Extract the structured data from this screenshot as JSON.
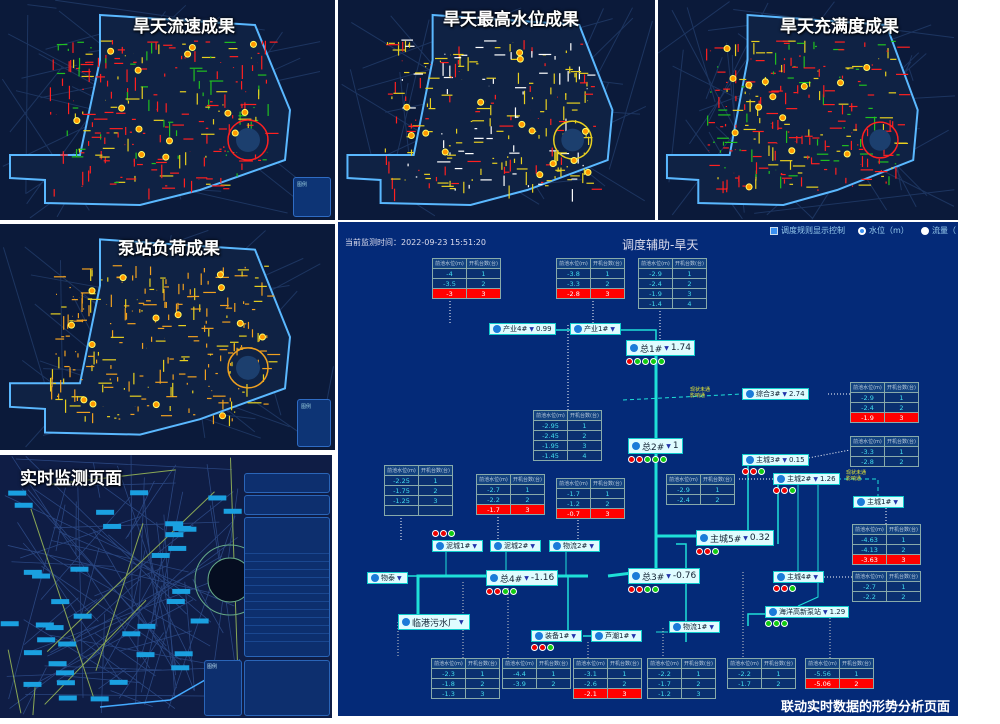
{
  "panels": {
    "flow_speed": {
      "title": "旱天流速成果",
      "legend_title": "图例"
    },
    "max_level": {
      "title": "旱天最高水位成果"
    },
    "fullness": {
      "title": "旱天充满度成果"
    },
    "pump_load": {
      "title": "泵站负荷成果",
      "legend_title": "图例"
    },
    "monitor": {
      "title": "实时监测页面",
      "legend_title": "图例"
    }
  },
  "colors": {
    "pipe_red": "#ff2020",
    "pipe_yellow": "#e8d020",
    "pipe_green": "#20c020",
    "pipe_orange": "#f0a020",
    "boundary": "#5ab8ff",
    "diagram_bg": "#042a78",
    "flow_line": "#1ee0d8",
    "alarm": "#ff0000"
  },
  "diagram": {
    "monitor_time": "当前监测时间：2022-09-23 15:51:20",
    "title": "调度辅助-旱天",
    "controls": {
      "rule_display": "调度规则显示控制",
      "level": "水位（m）",
      "flow": "流量（"
    },
    "caption": "联动实时数据的形势分析页面",
    "table_headers": [
      "前池水位(m)",
      "开机台数(台)"
    ],
    "warning_text": [
      "现状未通",
      "影响通"
    ],
    "tables": [
      {
        "rows": [
          [
            "-4",
            "1"
          ],
          [
            "-3.5",
            "2"
          ],
          [
            "-3",
            "3"
          ]
        ],
        "alarm_row": 2
      },
      {
        "rows": [
          [
            "-3.8",
            "1"
          ],
          [
            "-3.3",
            "2"
          ],
          [
            "-2.8",
            "3"
          ]
        ],
        "alarm_row": 2
      },
      {
        "rows": [
          [
            "-2.9",
            "1"
          ],
          [
            "-2.4",
            "2"
          ],
          [
            "-1.9",
            "3"
          ],
          [
            "-1.4",
            "4"
          ]
        ]
      },
      {
        "rows": [
          [
            "-2.9",
            "1"
          ],
          [
            "-2.4",
            "2"
          ],
          [
            "-1.9",
            "3"
          ]
        ],
        "alarm_row": 2
      },
      {
        "rows": [
          [
            "-2.95",
            "1"
          ],
          [
            "-2.45",
            "2"
          ],
          [
            "-1.95",
            "3"
          ],
          [
            "-1.45",
            "4"
          ]
        ]
      },
      {
        "rows": [
          [
            "-3.3",
            "1"
          ],
          [
            "-2.8",
            "2"
          ]
        ]
      },
      {
        "rows": [
          [
            "-2.25",
            "1"
          ],
          [
            "-1.75",
            "2"
          ],
          [
            "-1.25",
            "3"
          ],
          [
            "",
            ""
          ]
        ]
      },
      {
        "rows": [
          [
            "-2.7",
            "1"
          ],
          [
            "-2.2",
            "2"
          ],
          [
            "-1.7",
            "3"
          ]
        ],
        "alarm_row": 2
      },
      {
        "rows": [
          [
            "-1.7",
            "1"
          ],
          [
            "-1.2",
            "2"
          ],
          [
            "-0.7",
            "3"
          ]
        ],
        "alarm_row": 2
      },
      {
        "rows": [
          [
            "-2.9",
            "1"
          ],
          [
            "-2.4",
            "2"
          ]
        ]
      },
      {
        "rows": [
          [
            "-4.63",
            "1"
          ],
          [
            "-4.13",
            "2"
          ],
          [
            "-3.63",
            "3"
          ]
        ],
        "alarm_row": 2
      },
      {
        "rows": [
          [
            "-2.7",
            "1"
          ],
          [
            "-2.2",
            "2"
          ]
        ]
      },
      {
        "rows": [
          [
            "-2.3",
            "1"
          ],
          [
            "-1.8",
            "2"
          ],
          [
            "-1.3",
            "3"
          ]
        ]
      },
      {
        "rows": [
          [
            "-4.4",
            "1"
          ],
          [
            "-3.9",
            "2"
          ]
        ]
      },
      {
        "rows": [
          [
            "-3.1",
            "1"
          ],
          [
            "-2.6",
            "2"
          ],
          [
            "-2.1",
            "3"
          ]
        ],
        "alarm_row": 2
      },
      {
        "rows": [
          [
            "-2.2",
            "1"
          ],
          [
            "-1.7",
            "2"
          ],
          [
            "-1.2",
            "3"
          ]
        ]
      },
      {
        "rows": [
          [
            "-2.2",
            "1"
          ],
          [
            "-1.7",
            "2"
          ]
        ]
      },
      {
        "rows": [
          [
            "-5.56",
            "1"
          ],
          [
            "-5.06",
            "2"
          ]
        ],
        "alarm_row": 1
      }
    ],
    "stations": [
      {
        "name": "产业4#",
        "value": "0.99"
      },
      {
        "name": "产业1#",
        "value": ""
      },
      {
        "name": "总1#",
        "value": "1.74",
        "pumps": [
          "r",
          "g",
          "g",
          "g",
          "g"
        ]
      },
      {
        "name": "综合3#",
        "value": "2.74"
      },
      {
        "name": "总2#",
        "value": "1",
        "pumps": [
          "r",
          "r",
          "g",
          "g",
          "g"
        ]
      },
      {
        "name": "主城3#",
        "value": "0.15",
        "pumps": [
          "r",
          "r",
          "g"
        ]
      },
      {
        "name": "主城2#",
        "value": "1.26",
        "pumps": [
          "r",
          "r",
          "g"
        ]
      },
      {
        "name": "主城1#",
        "value": ""
      },
      {
        "name": "主城5#",
        "value": "0.32",
        "pumps": [
          "r",
          "r",
          "g"
        ]
      },
      {
        "name": "主城4#",
        "value": "",
        "pumps": [
          "r",
          "r",
          "g"
        ]
      },
      {
        "name": "海洋高新泵站",
        "value": "1.29",
        "pumps": [
          "g",
          "g",
          "g"
        ]
      },
      {
        "name": "总3#",
        "value": "-0.76",
        "pumps": [
          "r",
          "r",
          "g",
          "g"
        ]
      },
      {
        "name": "总4#",
        "value": "-1.16",
        "pumps": [
          "r",
          "r",
          "g",
          "g"
        ]
      },
      {
        "name": "泥城1#",
        "value": "",
        "pumps": [
          "r",
          "r",
          "g"
        ]
      },
      {
        "name": "泥城2#",
        "value": ""
      },
      {
        "name": "物流2#",
        "value": ""
      },
      {
        "name": "物泰",
        "value": ""
      },
      {
        "name": "临港污水厂",
        "value": ""
      },
      {
        "name": "装备1#",
        "value": "",
        "pumps": [
          "r",
          "r",
          "g"
        ]
      },
      {
        "name": "芦潮1#",
        "value": ""
      },
      {
        "name": "物流1#",
        "value": ""
      }
    ]
  }
}
